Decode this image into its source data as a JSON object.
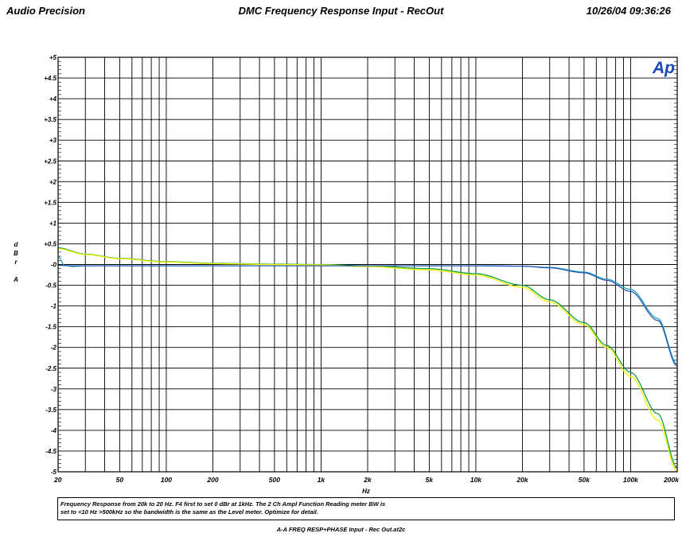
{
  "header": {
    "left": "Audio Precision",
    "title": "DMC Frequency Response Input - RecOut",
    "timestamp": "10/26/04 09:36:26"
  },
  "logo_text": "Ap",
  "note": {
    "line1": "Frequency Response from 20k to 20 Hz.  F4 first to set 0 dBr at 1kHz.  The 2 Ch Ampl Function Reading meter BW is",
    "line2": "set to <10 Hz  >500kHz so the bandwidth is the same as the Level meter.  Optimize for detail."
  },
  "footer": "A-A FREQ RESP+PHASE Input - Rec Out.at2c",
  "colors": {
    "background": "#ffffff",
    "grid": "#000000",
    "series_green": "#009a3a",
    "series_yellow": "#f4f40c",
    "series_cyan": "#1aa0b4",
    "series_blue": "#1e50b4",
    "logo": "#1a48b8"
  },
  "chart_data": {
    "type": "line",
    "title": "DMC Frequency Response Input - RecOut",
    "xlabel": "Hz",
    "ylabel": [
      "d",
      "B",
      "r",
      "",
      "A"
    ],
    "x_scale": "log",
    "xlim": [
      20,
      200000
    ],
    "ylim": [
      -5,
      5
    ],
    "grid": true,
    "x_ticks": [
      {
        "value": 20,
        "label": "20"
      },
      {
        "value": 50,
        "label": "50"
      },
      {
        "value": 100,
        "label": "100"
      },
      {
        "value": 200,
        "label": "200"
      },
      {
        "value": 500,
        "label": "500"
      },
      {
        "value": 1000,
        "label": "1k"
      },
      {
        "value": 2000,
        "label": "2k"
      },
      {
        "value": 5000,
        "label": "5k"
      },
      {
        "value": 10000,
        "label": "10k"
      },
      {
        "value": 20000,
        "label": "20k"
      },
      {
        "value": 50000,
        "label": "50k"
      },
      {
        "value": 100000,
        "label": "100k"
      },
      {
        "value": 200000,
        "label": "200k"
      }
    ],
    "y_ticks": [
      {
        "value": 5,
        "label": "+5"
      },
      {
        "value": 4.5,
        "label": "+4.5"
      },
      {
        "value": 4,
        "label": "+4"
      },
      {
        "value": 3.5,
        "label": "+3.5"
      },
      {
        "value": 3,
        "label": "+3"
      },
      {
        "value": 2.5,
        "label": "+2.5"
      },
      {
        "value": 2,
        "label": "+2"
      },
      {
        "value": 1.5,
        "label": "+1.5"
      },
      {
        "value": 1,
        "label": "+1"
      },
      {
        "value": 0.5,
        "label": "+0.5"
      },
      {
        "value": 0,
        "label": "-0"
      },
      {
        "value": -0.5,
        "label": "-0.5"
      },
      {
        "value": -1,
        "label": "-1"
      },
      {
        "value": -1.5,
        "label": "-1.5"
      },
      {
        "value": -2,
        "label": "-2"
      },
      {
        "value": -2.5,
        "label": "-2.5"
      },
      {
        "value": -3,
        "label": "-3"
      },
      {
        "value": -3.5,
        "label": "-3.5"
      },
      {
        "value": -4,
        "label": "-4"
      },
      {
        "value": -4.5,
        "label": "-4.5"
      },
      {
        "value": -5,
        "label": "-5"
      }
    ],
    "series": [
      {
        "color": "#009a3a",
        "x": [
          20,
          30,
          50,
          100,
          200,
          500,
          1000,
          2000,
          5000,
          10000,
          20000,
          30000,
          50000,
          70000,
          100000,
          150000,
          200000
        ],
        "y": [
          0.4,
          0.25,
          0.15,
          0.07,
          0.03,
          0.01,
          0,
          -0.03,
          -0.1,
          -0.22,
          -0.5,
          -0.85,
          -1.4,
          -1.95,
          -2.6,
          -3.6,
          -4.9
        ]
      },
      {
        "color": "#f4f40c",
        "x": [
          20,
          30,
          50,
          100,
          200,
          500,
          1000,
          2000,
          5000,
          10000,
          20000,
          30000,
          50000,
          70000,
          100000,
          150000,
          200000
        ],
        "y": [
          0.38,
          0.24,
          0.14,
          0.06,
          0.02,
          0.0,
          -0.01,
          -0.05,
          -0.13,
          -0.25,
          -0.55,
          -0.9,
          -1.45,
          -2.0,
          -2.7,
          -3.75,
          -5.0
        ]
      },
      {
        "color": "#1aa0b4",
        "x": [
          20,
          22,
          25,
          30,
          50,
          100,
          200,
          500,
          1000,
          2000,
          5000,
          10000,
          20000,
          30000,
          50000,
          70000,
          100000,
          150000,
          200000
        ],
        "y": [
          0.2,
          -0.02,
          -0.05,
          -0.03,
          -0.03,
          -0.03,
          -0.03,
          -0.03,
          -0.03,
          -0.03,
          -0.03,
          -0.03,
          -0.04,
          -0.07,
          -0.18,
          -0.35,
          -0.6,
          -1.3,
          -2.4
        ]
      },
      {
        "color": "#1e50b4",
        "x": [
          20,
          25,
          50,
          100,
          200,
          500,
          1000,
          2000,
          5000,
          10000,
          20000,
          30000,
          50000,
          70000,
          100000,
          150000,
          200000
        ],
        "y": [
          -0.02,
          -0.03,
          -0.03,
          -0.03,
          -0.03,
          -0.03,
          -0.03,
          -0.03,
          -0.03,
          -0.03,
          -0.04,
          -0.08,
          -0.2,
          -0.38,
          -0.65,
          -1.35,
          -2.45
        ]
      }
    ]
  }
}
